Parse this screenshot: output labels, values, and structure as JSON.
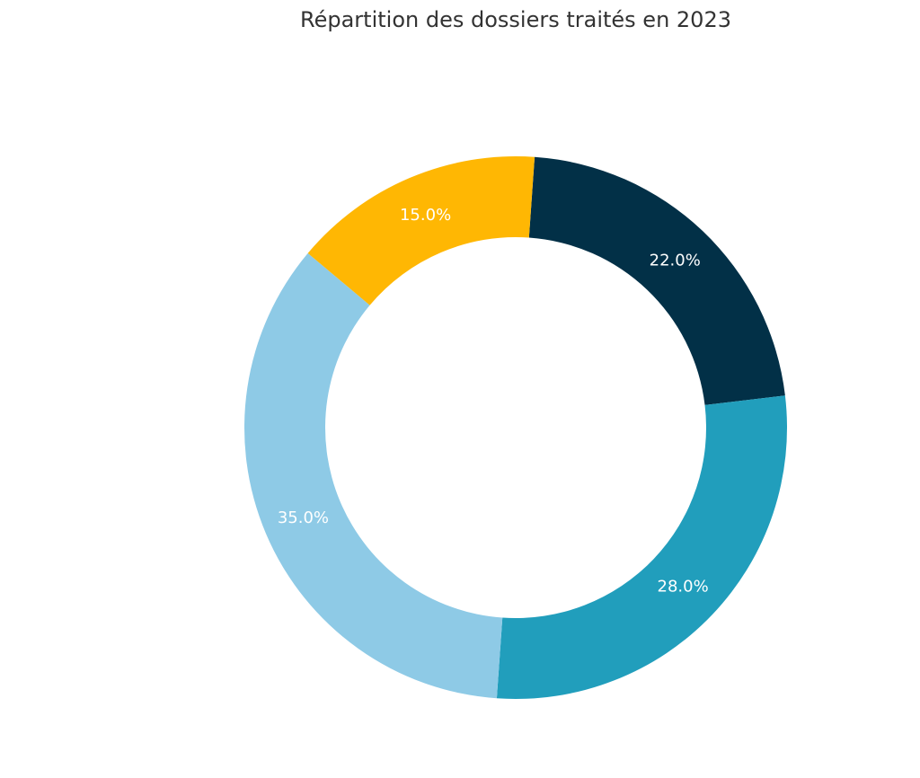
{
  "chart_data": {
    "type": "pie",
    "variant": "donut",
    "title": "Répartition des dossiers traités en 2023",
    "values": [
      22.0,
      28.0,
      35.0,
      15.0
    ],
    "labels": [
      "22.0%",
      "28.0%",
      "35.0%",
      "15.0%"
    ],
    "colors": [
      "#023047",
      "#219EBC",
      "#8ECAE6",
      "#FFB703"
    ],
    "direction": "clockwise",
    "legend": "none"
  }
}
